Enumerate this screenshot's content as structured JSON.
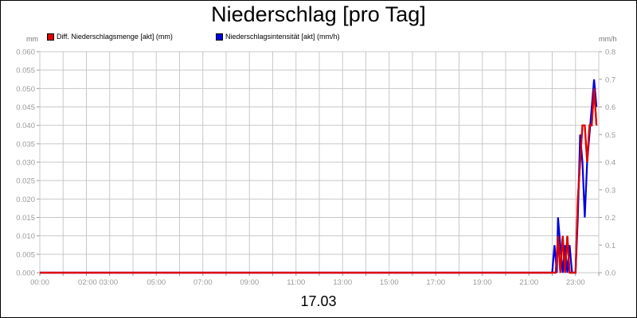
{
  "chart_data": {
    "type": "line",
    "title": "Niederschlag [pro Tag]",
    "y_left_unit": "mm",
    "y_right_unit": "mm/h",
    "date_label": "17.03",
    "x_ticks": [
      "00:00",
      "02:00 03:00",
      "05:00",
      "07:00",
      "09:00",
      "11:00",
      "13:00",
      "15:00",
      "17:00",
      "19:00",
      "21:00",
      "23:00"
    ],
    "x_range_hours": [
      0,
      24
    ],
    "y_left_ticks": [
      "0.000",
      "0.005",
      "0.010",
      "0.015",
      "0.020",
      "0.025",
      "0.030",
      "0.035",
      "0.040",
      "0.045",
      "0.050",
      "0.055",
      "0.060"
    ],
    "y_left_range": [
      0,
      0.06
    ],
    "y_right_ticks": [
      "0.0",
      "0.1",
      "0.2",
      "0.3",
      "0.4",
      "0.5",
      "0.6",
      "0.7",
      "0.8"
    ],
    "y_right_range": [
      0,
      0.8
    ],
    "grid": true,
    "legend_position": "top-left",
    "series": [
      {
        "name": "Diff. Niederschlagsmenge [akt] (mm)",
        "color": "#e00000",
        "axis": "left",
        "points": [
          [
            0,
            0
          ],
          [
            22.0,
            0
          ],
          [
            22.15,
            0.0
          ],
          [
            22.25,
            0.01
          ],
          [
            22.35,
            0.0
          ],
          [
            22.45,
            0.01
          ],
          [
            22.55,
            0.0
          ],
          [
            22.65,
            0.01
          ],
          [
            22.75,
            0.0
          ],
          [
            22.85,
            0.0
          ],
          [
            23.0,
            0.0
          ],
          [
            23.1,
            0.02
          ],
          [
            23.2,
            0.03
          ],
          [
            23.3,
            0.04
          ],
          [
            23.4,
            0.04
          ],
          [
            23.5,
            0.03
          ],
          [
            23.6,
            0.04
          ],
          [
            23.7,
            0.04
          ],
          [
            23.8,
            0.05
          ],
          [
            23.9,
            0.04
          ]
        ]
      },
      {
        "name": "Niederschlagsintensität [akt] (mm/h)",
        "color": "#0000e0",
        "axis": "right",
        "points": [
          [
            0,
            0
          ],
          [
            22.0,
            0
          ],
          [
            22.1,
            0.1
          ],
          [
            22.2,
            0.0
          ],
          [
            22.25,
            0.2
          ],
          [
            22.35,
            0.1
          ],
          [
            22.45,
            0.0
          ],
          [
            22.55,
            0.1
          ],
          [
            22.65,
            0.0
          ],
          [
            22.75,
            0.1
          ],
          [
            22.85,
            0.0
          ],
          [
            23.0,
            0.0
          ],
          [
            23.1,
            0.2
          ],
          [
            23.2,
            0.5
          ],
          [
            23.3,
            0.4
          ],
          [
            23.4,
            0.2
          ],
          [
            23.5,
            0.4
          ],
          [
            23.6,
            0.5
          ],
          [
            23.7,
            0.6
          ],
          [
            23.8,
            0.7
          ],
          [
            23.9,
            0.6
          ]
        ]
      }
    ]
  }
}
